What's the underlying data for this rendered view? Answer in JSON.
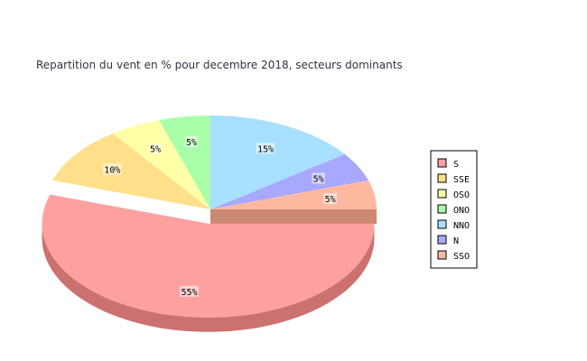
{
  "chart_data": {
    "type": "pie",
    "title": "Repartition du vent en % pour decembre 2018, secteurs dominants",
    "legend_position": "right",
    "slices": [
      {
        "name": "S",
        "value": 55,
        "label": "55%",
        "color": "#ffa0a0",
        "side": "#cc7070"
      },
      {
        "name": "SSE",
        "value": 10,
        "label": "10%",
        "color": "#ffe08a",
        "side": "#ccb24a"
      },
      {
        "name": "OSO",
        "value": 5,
        "label": "5%",
        "color": "#ffffa8",
        "side": "#cccc78"
      },
      {
        "name": "ONO",
        "value": 5,
        "label": "5%",
        "color": "#a8ffa8",
        "side": "#78cc78"
      },
      {
        "name": "NNO",
        "value": 15,
        "label": "15%",
        "color": "#a8e0ff",
        "side": "#78b0cc"
      },
      {
        "name": "N",
        "value": 5,
        "label": "5%",
        "color": "#a8a8ff",
        "side": "#7878cc"
      },
      {
        "name": "SSO",
        "value": 5,
        "label": "5%",
        "color": "#ffb8a0",
        "side": "#cc8870"
      }
    ]
  }
}
